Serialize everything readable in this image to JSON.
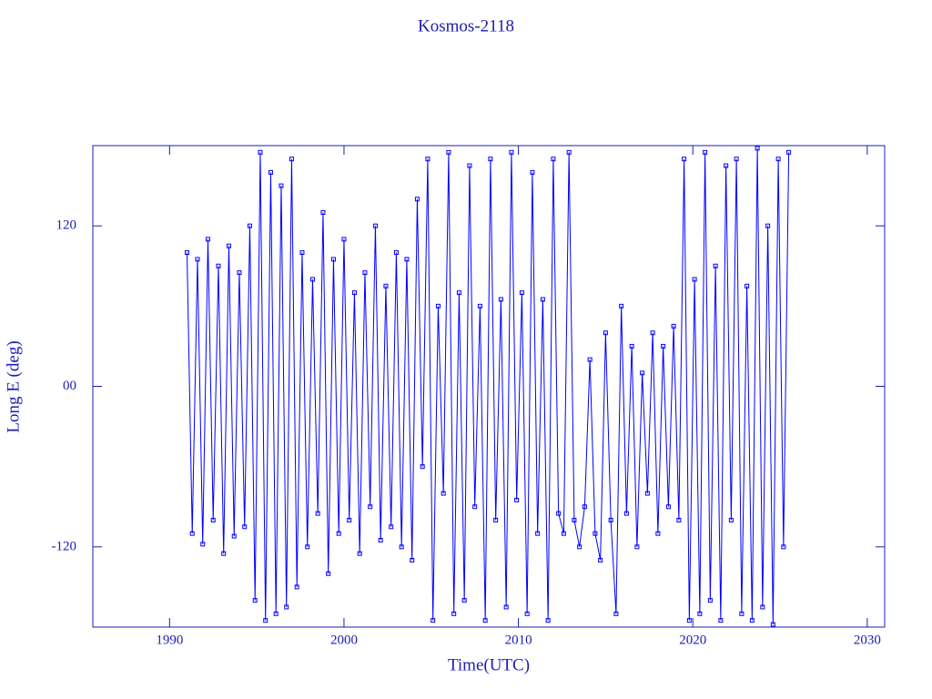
{
  "chart_data": {
    "type": "line",
    "title": "Kosmos-2118",
    "x_label": "Time(UTC)",
    "y_label": "Long E (deg)",
    "xlim": [
      1985.6,
      2031
    ],
    "xticks": [
      1990,
      2000,
      2010,
      2020,
      2030
    ],
    "ylim": [
      -180,
      180
    ],
    "yticks": [
      -120,
      {
        "value": 0,
        "label": "00"
      },
      120
    ],
    "markers": "square",
    "series": [
      {
        "color": "#0000ff",
        "x": [
          1991.0,
          1991.3,
          1991.6,
          1991.9,
          1992.2,
          1992.5,
          1992.8,
          1993.1,
          1993.4,
          1993.7,
          1994.0,
          1994.3,
          1994.6,
          1994.9,
          1995.2,
          1995.5,
          1995.8,
          1996.1,
          1996.4,
          1996.7,
          1997.0,
          1997.3,
          1997.6,
          1997.9,
          1998.2,
          1998.5,
          1998.8,
          1999.1,
          1999.4,
          1999.7,
          2000.0,
          2000.3,
          2000.6,
          2000.9,
          2001.2,
          2001.5,
          2001.8,
          2002.1,
          2002.4,
          2002.7,
          2003.0,
          2003.3,
          2003.6,
          2003.9,
          2004.2,
          2004.5,
          2004.8,
          2005.1,
          2005.4,
          2005.7,
          2006.0,
          2006.3,
          2006.6,
          2006.9,
          2007.2,
          2007.5,
          2007.8,
          2008.1,
          2008.4,
          2008.7,
          2009.0,
          2009.3,
          2009.6,
          2009.9,
          2010.2,
          2010.5,
          2010.8,
          2011.1,
          2011.4,
          2011.7,
          2012.0,
          2012.3,
          2012.6,
          2012.9,
          2013.2,
          2013.5,
          2013.8,
          2014.1,
          2014.4,
          2014.7,
          2015.0,
          2015.3,
          2015.6,
          2015.9,
          2016.2,
          2016.5,
          2016.8,
          2017.1,
          2017.4,
          2017.7,
          2018.0,
          2018.3,
          2018.6,
          2018.9,
          2019.2,
          2019.5,
          2019.8,
          2020.1,
          2020.4,
          2020.7,
          2021.0,
          2021.3,
          2021.6,
          2021.9,
          2022.2,
          2022.5,
          2022.8,
          2023.1,
          2023.4,
          2023.7,
          2024.0,
          2024.3,
          2024.6,
          2024.9,
          2025.2,
          2025.5
        ],
        "values": [
          100,
          -110,
          95,
          -118,
          110,
          -100,
          90,
          -125,
          105,
          -112,
          85,
          -105,
          120,
          -160,
          175,
          -175,
          160,
          -170,
          150,
          -165,
          170,
          -150,
          100,
          -120,
          80,
          -95,
          130,
          -140,
          95,
          -110,
          110,
          -100,
          70,
          -125,
          85,
          -90,
          120,
          -115,
          75,
          -105,
          100,
          -120,
          95,
          -130,
          140,
          -60,
          170,
          -175,
          60,
          -80,
          175,
          -170,
          70,
          -160,
          165,
          -90,
          60,
          -175,
          170,
          -100,
          65,
          -165,
          175,
          -85,
          70,
          -170,
          160,
          -110,
          65,
          -175,
          170,
          -95,
          -110,
          175,
          -100,
          -120,
          -90,
          20,
          -110,
          -130,
          40,
          -100,
          -170,
          60,
          -95,
          30,
          -120,
          10,
          -80,
          40,
          -110,
          30,
          -90,
          45,
          -100,
          170,
          -175,
          80,
          -170,
          175,
          -160,
          90,
          -175,
          165,
          -100,
          170,
          -170,
          75,
          -175,
          178,
          -165,
          120,
          -178,
          170,
          -120,
          175
        ]
      }
    ]
  }
}
